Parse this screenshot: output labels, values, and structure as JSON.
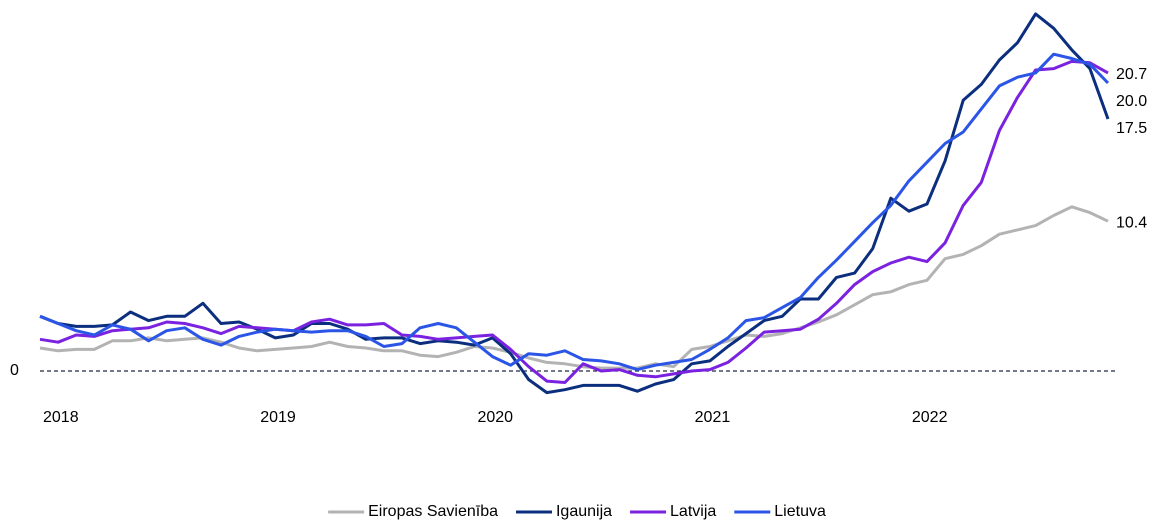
{
  "chart_data": {
    "type": "line",
    "categories": [
      "2018",
      null,
      null,
      null,
      null,
      null,
      null,
      null,
      null,
      null,
      null,
      null,
      "2019",
      null,
      null,
      null,
      null,
      null,
      null,
      null,
      null,
      null,
      null,
      null,
      "2020",
      null,
      null,
      null,
      null,
      null,
      null,
      null,
      null,
      null,
      null,
      null,
      "2021",
      null,
      null,
      null,
      null,
      null,
      null,
      null,
      null,
      null,
      null,
      null,
      "2022",
      null,
      null,
      null,
      null,
      null,
      null,
      null,
      null,
      null,
      null,
      null
    ],
    "ylim": [
      -2,
      25
    ],
    "yticks": [
      0
    ],
    "legend": "bottom",
    "series": [
      {
        "name": "Eiropas Savienība",
        "color": "#b3b3b3",
        "end_label": "10.4",
        "values": [
          1.6,
          1.4,
          1.5,
          1.5,
          2.1,
          2.1,
          2.3,
          2.1,
          2.2,
          2.3,
          2.0,
          1.6,
          1.4,
          1.5,
          1.6,
          1.7,
          2.0,
          1.7,
          1.6,
          1.4,
          1.4,
          1.1,
          1.0,
          1.3,
          1.7,
          1.6,
          1.3,
          0.9,
          0.6,
          0.5,
          0.3,
          0.2,
          0.2,
          0.2,
          0.5,
          0.3,
          1.5,
          1.7,
          2.1,
          2.5,
          2.4,
          2.6,
          3.0,
          3.4,
          3.9,
          4.6,
          5.3,
          5.5,
          6.0,
          6.3,
          7.8,
          8.1,
          8.7,
          9.5,
          9.8,
          10.1,
          10.8,
          11.4,
          11.0,
          10.4
        ]
      },
      {
        "name": "Igaunija",
        "color": "#0b2f7e",
        "end_label": "17.5",
        "values": [
          3.8,
          3.3,
          3.1,
          3.1,
          3.2,
          4.1,
          3.5,
          3.8,
          3.8,
          4.7,
          3.3,
          3.4,
          2.9,
          2.3,
          2.5,
          3.3,
          3.3,
          2.9,
          2.2,
          2.3,
          2.3,
          1.9,
          2.1,
          2.0,
          1.8,
          2.3,
          1.2,
          -0.6,
          -1.5,
          -1.3,
          -1.0,
          -1.0,
          -1.0,
          -1.4,
          -0.9,
          -0.6,
          0.5,
          0.7,
          1.7,
          2.6,
          3.5,
          3.8,
          5.0,
          5.0,
          6.5,
          6.8,
          8.5,
          12.0,
          11.1,
          11.6,
          14.6,
          18.8,
          19.9,
          21.6,
          22.8,
          24.8,
          23.8,
          22.3,
          21.0,
          17.5
        ]
      },
      {
        "name": "Latvija",
        "color": "#7b22e0",
        "end_label": "20.7",
        "values": [
          2.2,
          2.0,
          2.5,
          2.4,
          2.8,
          2.9,
          3.0,
          3.4,
          3.3,
          3.0,
          2.6,
          3.1,
          3.0,
          2.9,
          2.8,
          3.4,
          3.6,
          3.2,
          3.2,
          3.3,
          2.5,
          2.4,
          2.2,
          2.3,
          2.4,
          2.5,
          1.5,
          0.3,
          -0.7,
          -0.8,
          0.5,
          0.0,
          0.1,
          -0.3,
          -0.4,
          -0.2,
          0.0,
          0.1,
          0.6,
          1.6,
          2.7,
          2.8,
          2.9,
          3.6,
          4.7,
          6.0,
          6.9,
          7.5,
          7.9,
          7.6,
          8.9,
          11.5,
          13.1,
          16.7,
          19.0,
          20.9,
          21.0,
          21.5,
          21.4,
          20.7
        ]
      },
      {
        "name": "Lietuva",
        "color": "#2b55e6",
        "end_label": "20.0",
        "values": [
          3.8,
          3.3,
          2.8,
          2.5,
          3.2,
          2.9,
          2.1,
          2.8,
          3.0,
          2.2,
          1.8,
          2.4,
          2.7,
          2.9,
          2.8,
          2.7,
          2.8,
          2.8,
          2.4,
          1.7,
          1.9,
          3.0,
          3.3,
          3.0,
          2.0,
          1.0,
          0.4,
          1.2,
          1.1,
          1.4,
          0.8,
          0.7,
          0.5,
          0.1,
          0.4,
          0.6,
          0.8,
          1.5,
          2.3,
          3.5,
          3.7,
          4.4,
          5.1,
          6.5,
          7.7,
          9.0,
          10.3,
          11.5,
          13.2,
          14.5,
          15.8,
          16.6,
          18.2,
          19.8,
          20.4,
          20.7,
          22.0,
          21.7,
          21.3,
          20.0
        ]
      }
    ]
  }
}
